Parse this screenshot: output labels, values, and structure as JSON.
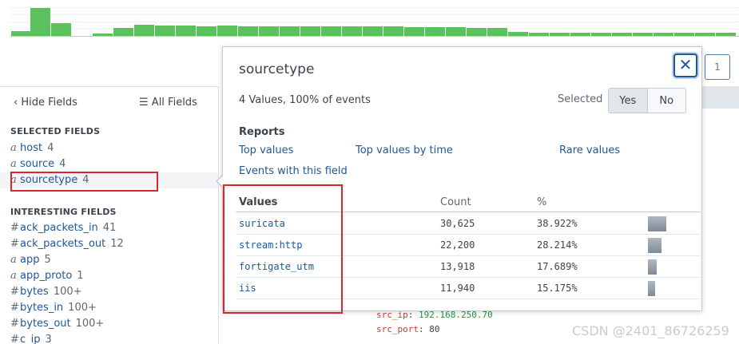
{
  "timeline": {
    "bars": [
      0.2,
      1.0,
      0.46,
      0.0,
      0.1,
      0.3,
      0.41,
      0.39,
      0.39,
      0.36,
      0.39,
      0.36,
      0.37,
      0.36,
      0.36,
      0.37,
      0.36,
      0.36,
      0.36,
      0.34,
      0.34,
      0.34,
      0.31,
      0.31,
      0.17,
      0.15,
      0.15,
      0.15,
      0.15,
      0.15,
      0.15,
      0.15,
      0.13,
      0.13,
      0.13
    ],
    "bar_color": "#5cc05c"
  },
  "pagination": {
    "current": "1"
  },
  "sidebar": {
    "hide_fields": "Hide Fields",
    "all_fields": "All Fields",
    "selected_title": "SELECTED FIELDS",
    "selected_fields": [
      {
        "type": "a",
        "name": "host",
        "count": "4"
      },
      {
        "type": "a",
        "name": "source",
        "count": "4"
      },
      {
        "type": "a",
        "name": "sourcetype",
        "count": "4"
      }
    ],
    "interesting_title": "INTERESTING FIELDS",
    "interesting_fields": [
      {
        "type": "#",
        "name": "ack_packets_in",
        "count": "41"
      },
      {
        "type": "#",
        "name": "ack_packets_out",
        "count": "12"
      },
      {
        "type": "a",
        "name": "app",
        "count": "5"
      },
      {
        "type": "a",
        "name": "app_proto",
        "count": "1"
      },
      {
        "type": "#",
        "name": "bytes",
        "count": "100+"
      },
      {
        "type": "#",
        "name": "bytes_in",
        "count": "100+"
      },
      {
        "type": "#",
        "name": "bytes_out",
        "count": "100+"
      },
      {
        "type": "#",
        "name": "c_ip",
        "count": "3"
      }
    ]
  },
  "event": {
    "lines": [
      {
        "key": "src_ip",
        "value": "192.168.250.70",
        "is_ip": true
      },
      {
        "key": "src_port",
        "value": "80",
        "is_ip": false
      }
    ]
  },
  "popup": {
    "title": "sourcetype",
    "close": "✕",
    "summary": "4 Values, 100% of events",
    "selected_label": "Selected",
    "yes": "Yes",
    "no": "No",
    "reports_title": "Reports",
    "reports": [
      "Top values",
      "Top values by time",
      "Rare values",
      "Events with this field"
    ],
    "table": {
      "headers": {
        "values": "Values",
        "count": "Count",
        "percent": "%"
      },
      "rows": [
        {
          "value": "suricata",
          "count": "30,625",
          "percent": "38.922%",
          "share": 0.389
        },
        {
          "value": "stream:http",
          "count": "22,200",
          "percent": "28.214%",
          "share": 0.282
        },
        {
          "value": "fortigate_utm",
          "count": "13,918",
          "percent": "17.689%",
          "share": 0.177
        },
        {
          "value": "iis",
          "count": "11,940",
          "percent": "15.175%",
          "share": 0.152
        }
      ]
    }
  },
  "watermark": "CSDN @2401_86726259",
  "colors": {
    "link": "#1e5799",
    "highlight_box": "#d9272e",
    "accent": "#5cc05c"
  }
}
